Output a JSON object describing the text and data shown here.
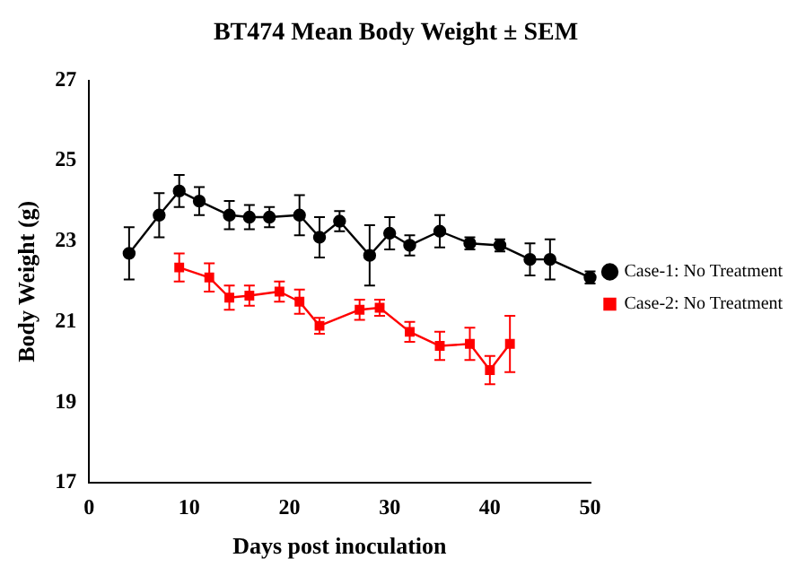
{
  "chart_data": {
    "type": "line",
    "title": "BT474 Mean Body Weight ± SEM",
    "xlabel": "Days post inoculation",
    "ylabel": "Body Weight (g)",
    "xlim": [
      0,
      50
    ],
    "xticks": [
      0,
      10,
      20,
      30,
      40,
      50
    ],
    "ylim": [
      17,
      27
    ],
    "yticks": [
      17,
      19,
      21,
      23,
      25,
      27
    ],
    "grid": false,
    "legend": "right",
    "series": [
      {
        "name": "Case-1: No Treatment",
        "color": "#000000",
        "marker": "circle",
        "x": [
          4,
          7,
          9,
          11,
          14,
          16,
          18,
          21,
          23,
          25,
          28,
          30,
          32,
          35,
          38,
          41,
          44,
          46,
          50
        ],
        "values": [
          22.7,
          23.65,
          24.25,
          24.0,
          23.65,
          23.6,
          23.6,
          23.65,
          23.1,
          23.5,
          22.65,
          23.2,
          22.9,
          23.25,
          22.95,
          22.9,
          22.55,
          22.55,
          22.1
        ],
        "errors": [
          0.65,
          0.55,
          0.4,
          0.35,
          0.35,
          0.3,
          0.25,
          0.5,
          0.5,
          0.25,
          0.75,
          0.4,
          0.25,
          0.4,
          0.15,
          0.15,
          0.4,
          0.5,
          0.15
        ]
      },
      {
        "name": "Case-2: No Treatment",
        "color": "#ff0000",
        "marker": "square",
        "x": [
          9,
          12,
          14,
          16,
          19,
          21,
          23,
          27,
          29,
          32,
          35,
          38,
          40,
          42
        ],
        "values": [
          22.35,
          22.1,
          21.6,
          21.65,
          21.75,
          21.5,
          20.9,
          21.3,
          21.35,
          20.75,
          20.4,
          20.45,
          19.8,
          20.45
        ],
        "errors": [
          0.35,
          0.35,
          0.3,
          0.25,
          0.25,
          0.3,
          0.2,
          0.25,
          0.2,
          0.25,
          0.35,
          0.4,
          0.35,
          0.7
        ]
      }
    ]
  }
}
